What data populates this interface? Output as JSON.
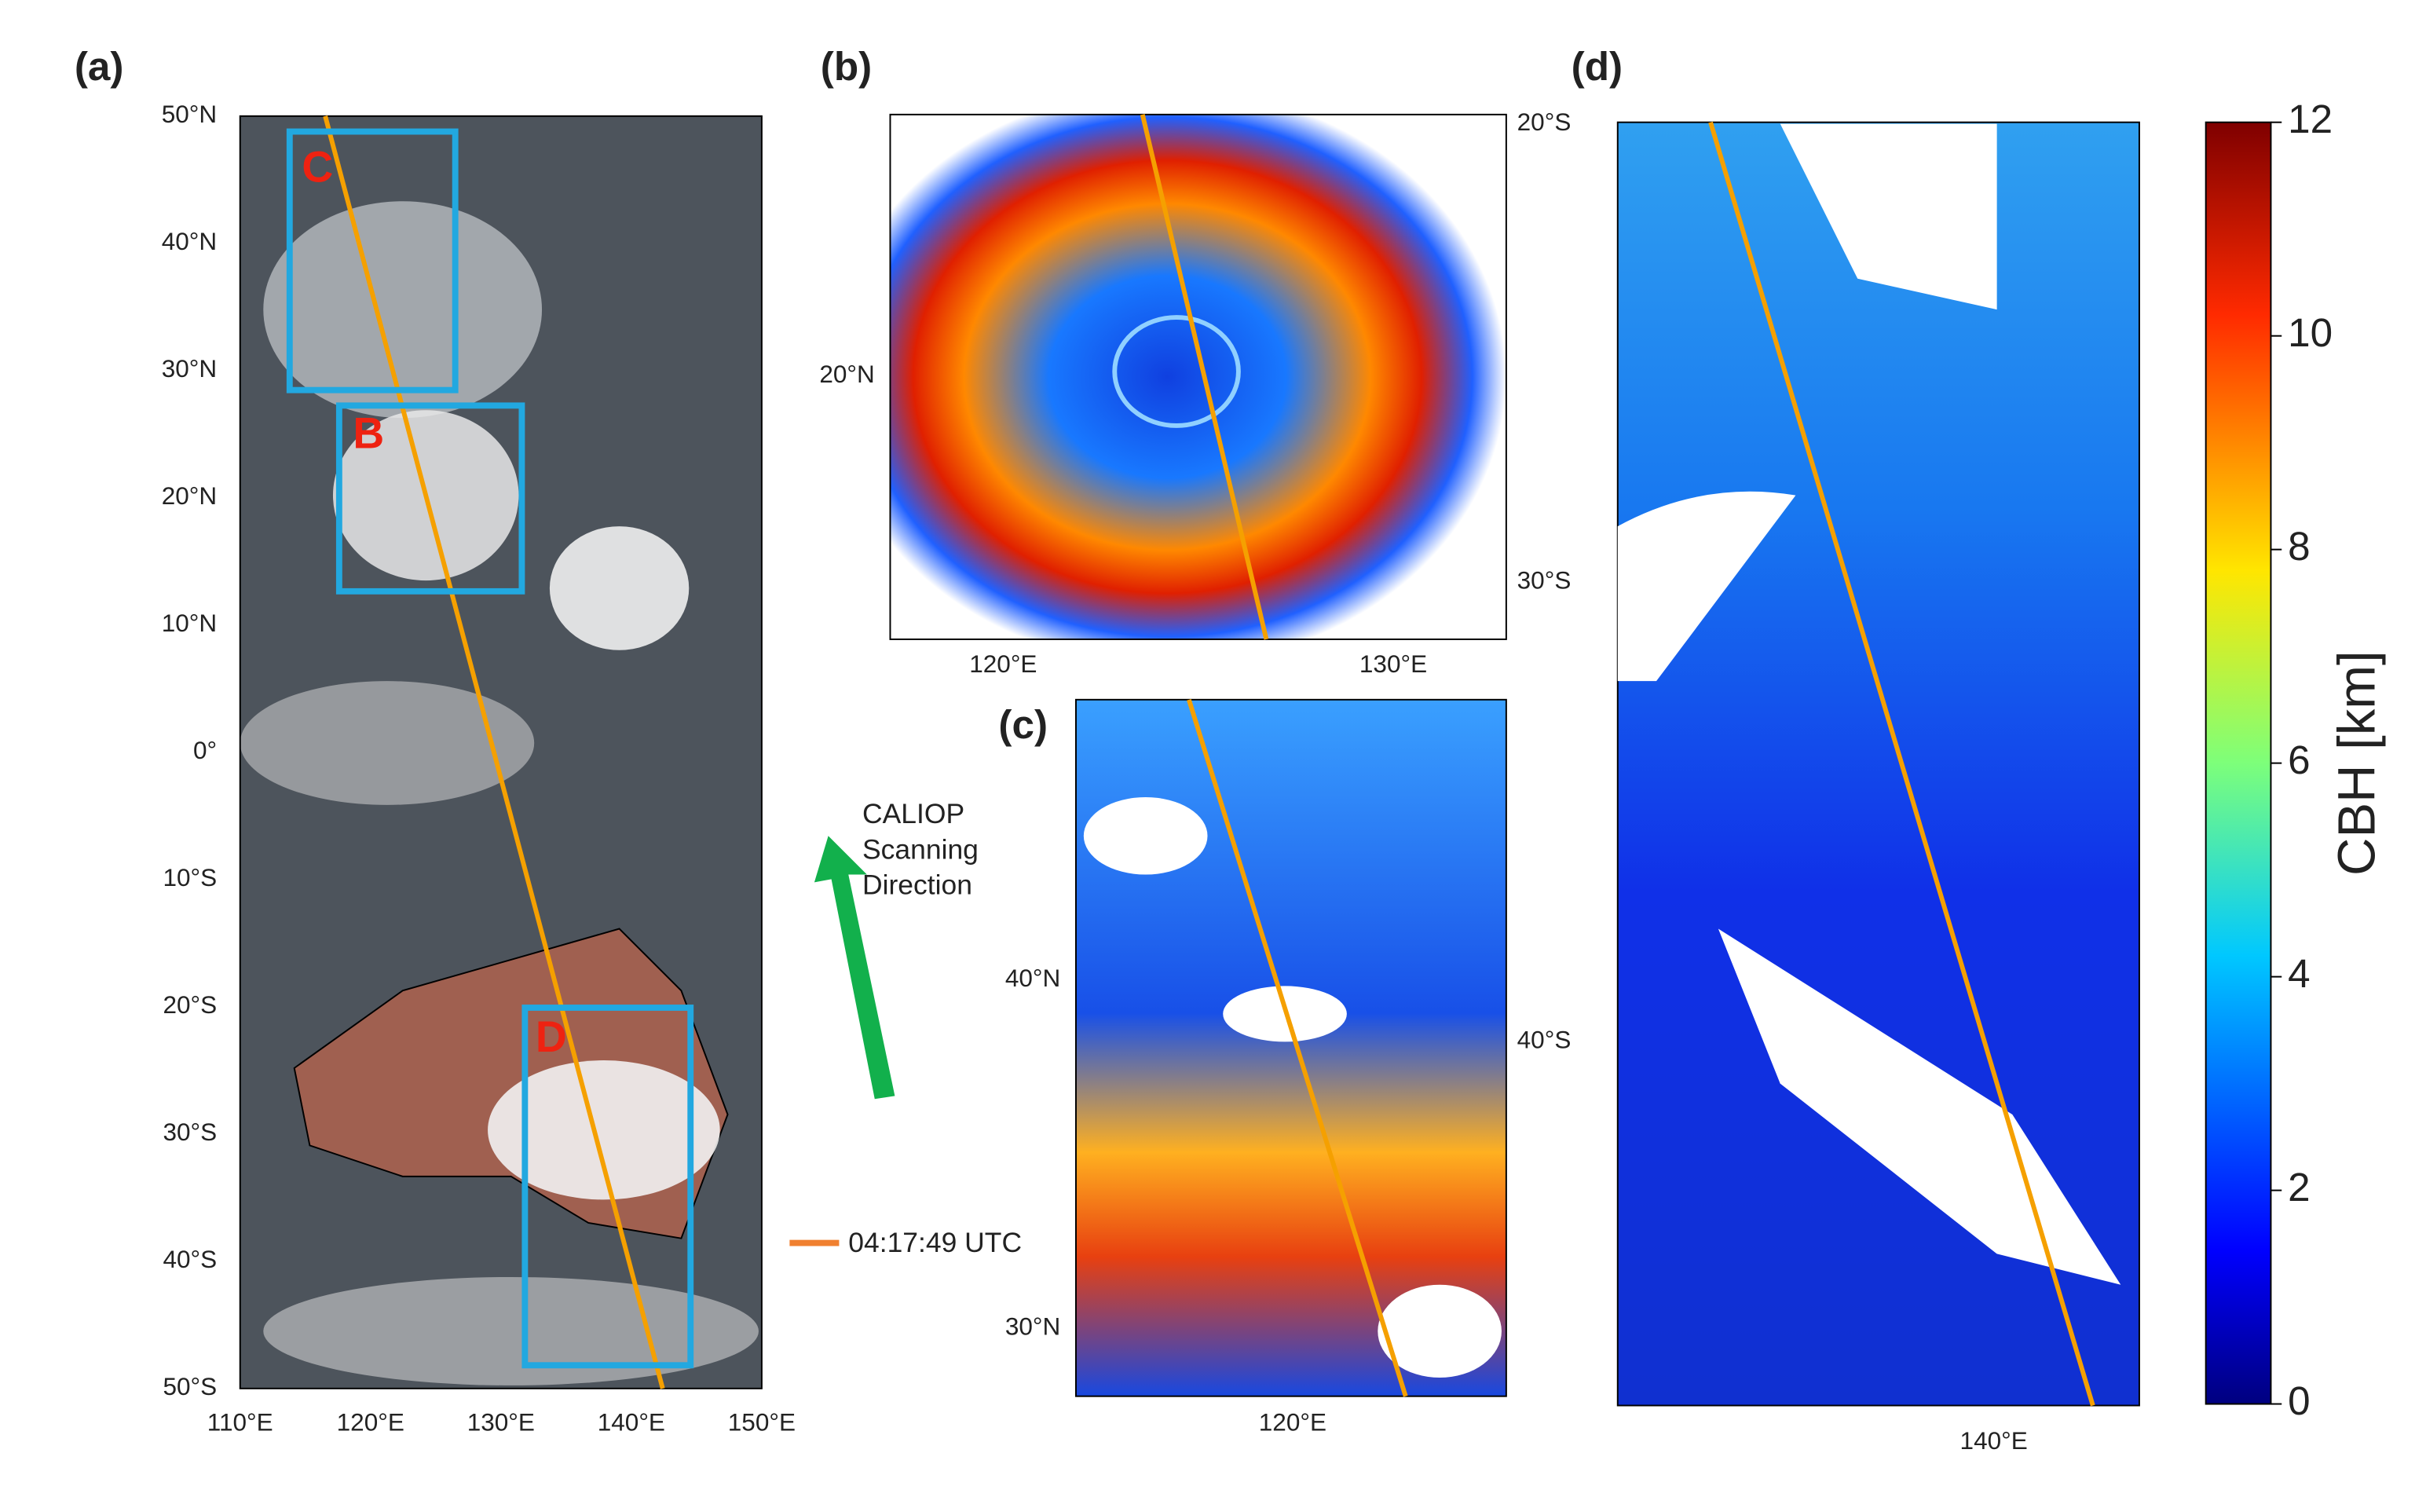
{
  "panels": [
    {
      "label": "(a)",
      "yticks": [
        "50°N",
        "40°N",
        "30°N",
        "20°N",
        "10°N",
        "0°",
        "10°S",
        "20°S",
        "30°S",
        "40°S",
        "50°S"
      ],
      "xticks": [
        "110°E",
        "120°E",
        "130°E",
        "140°E",
        "150°E"
      ],
      "boxes": [
        "C",
        "B",
        "D"
      ]
    },
    {
      "label": "(b)",
      "left_ticks": [
        "20°N"
      ],
      "right_ticks": [
        "20°S",
        "30°S"
      ],
      "xticks": [
        "120°E",
        "130°E"
      ]
    },
    {
      "label": "(c)",
      "left_ticks": [
        "40°N",
        "30°N"
      ],
      "right_ticks": [
        "40°S"
      ],
      "xticks": [
        "120°E"
      ]
    },
    {
      "label": "(d)",
      "xticks": [
        "140°E"
      ]
    }
  ],
  "arrow_label": [
    "CALIOP",
    "Scanning",
    "Direction"
  ],
  "track_label": "04:17:49 UTC",
  "colorbar": {
    "label": "CBH [km]",
    "lim": [
      0,
      12
    ],
    "ticks": [
      0,
      2,
      4,
      6,
      8,
      10,
      12
    ]
  }
}
